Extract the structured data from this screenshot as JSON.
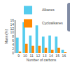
{
  "chart_data": {
    "type": "bar",
    "xlabel": "Number of carbons",
    "ylabel": "Mass (%)",
    "categories": [
      "9",
      "10",
      "11",
      "12",
      "13",
      "14",
      "15",
      "16"
    ],
    "series": [
      {
        "name": "Alkanes",
        "color": "#55ccee",
        "values": [
          7.5,
          15.0,
          8.5,
          13.5,
          8.0,
          8.5,
          8.0,
          1.5
        ]
      },
      {
        "name": "Cycloalkanes",
        "color": "#ff8800",
        "values": [
          0.5,
          4.5,
          3.5,
          3.5,
          2.5,
          1.5,
          2.5,
          0.2
        ]
      }
    ],
    "ylim": [
      0,
      16
    ],
    "yticks": [
      0,
      2,
      4,
      6,
      8,
      10,
      12,
      14,
      16
    ],
    "grid": false,
    "legend": "upper right"
  }
}
